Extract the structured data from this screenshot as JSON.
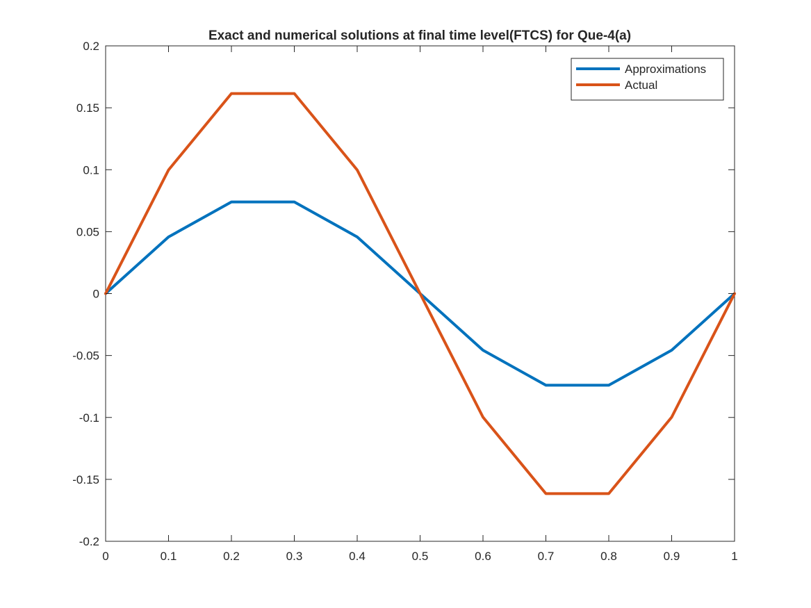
{
  "chart_data": {
    "type": "line",
    "title": "Exact and numerical solutions at final time level(FTCS) for Que-4(a)",
    "xlabel": "",
    "ylabel": "",
    "x": [
      0,
      0.1,
      0.2,
      0.3,
      0.4,
      0.5,
      0.6,
      0.7,
      0.8,
      0.9,
      1
    ],
    "series": [
      {
        "name": "Approximations",
        "color": "#0072BD",
        "values": [
          0,
          0.0457,
          0.074,
          0.074,
          0.0457,
          0,
          -0.0457,
          -0.074,
          -0.074,
          -0.0457,
          0
        ]
      },
      {
        "name": "Actual",
        "color": "#D95319",
        "values": [
          0,
          0.0998,
          0.1615,
          0.1615,
          0.0998,
          0,
          -0.0998,
          -0.1615,
          -0.1615,
          -0.0998,
          0
        ]
      }
    ],
    "xlim": [
      0,
      1
    ],
    "ylim": [
      -0.2,
      0.2
    ],
    "xticks": [
      0,
      0.1,
      0.2,
      0.3,
      0.4,
      0.5,
      0.6,
      0.7,
      0.8,
      0.9,
      1
    ],
    "xtick_labels": [
      "0",
      "0.1",
      "0.2",
      "0.3",
      "0.4",
      "0.5",
      "0.6",
      "0.7",
      "0.8",
      "0.9",
      "1"
    ],
    "yticks": [
      -0.2,
      -0.15,
      -0.1,
      -0.05,
      0,
      0.05,
      0.1,
      0.15,
      0.2
    ],
    "ytick_labels": [
      "-0.2",
      "-0.15",
      "-0.1",
      "-0.05",
      "0",
      "0.05",
      "0.1",
      "0.15",
      "0.2"
    ],
    "grid": false,
    "legend_position": "top-right"
  }
}
